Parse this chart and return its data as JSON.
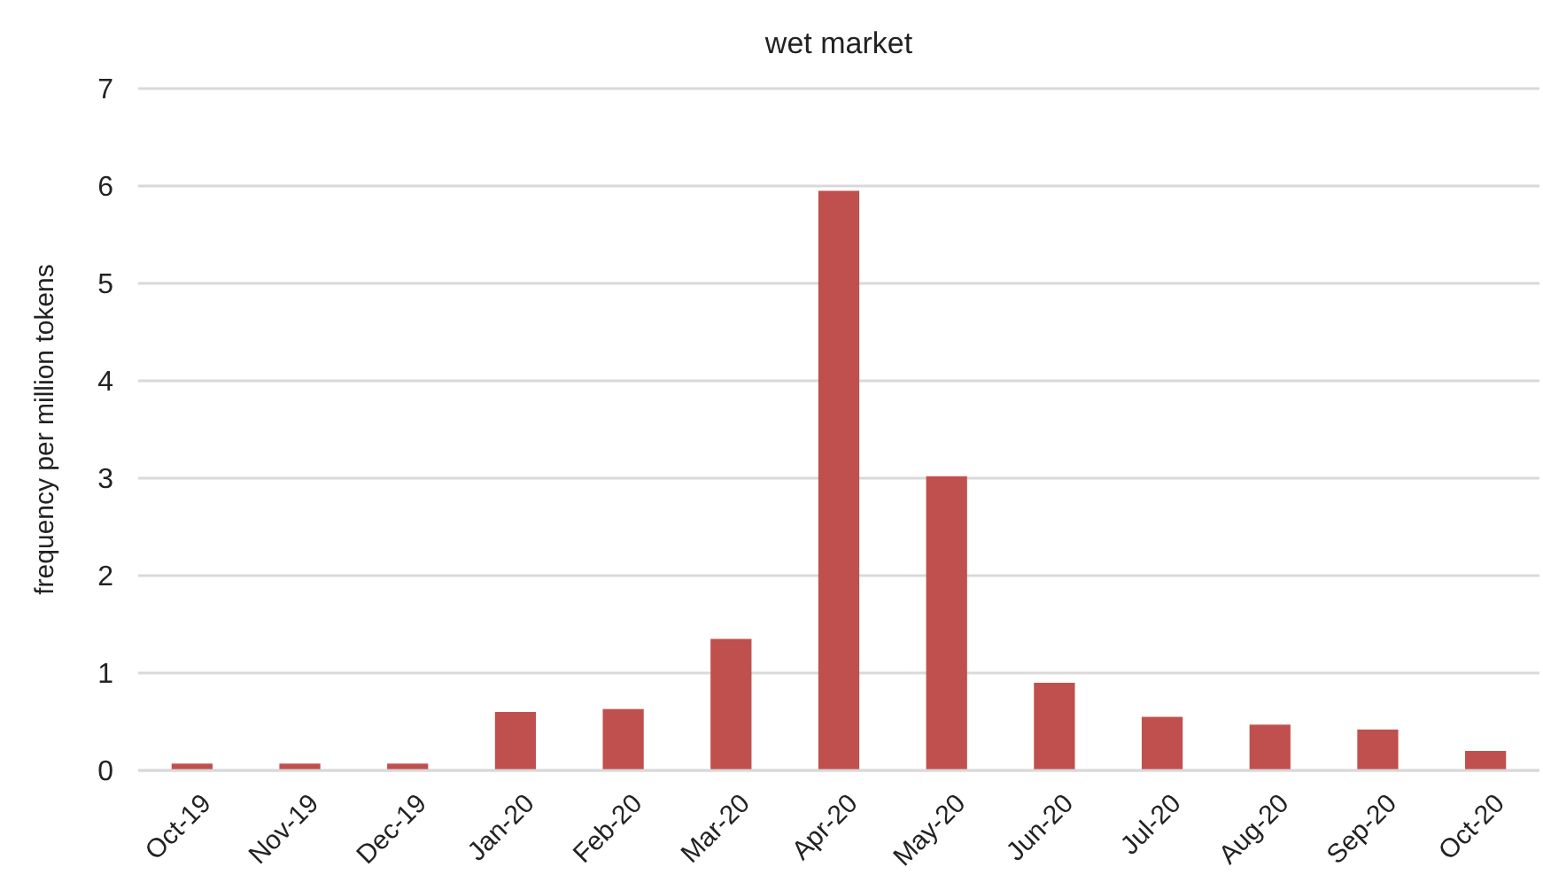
{
  "chart_data": {
    "type": "bar",
    "title": "wet market",
    "ylabel": "frequency per million tokens",
    "categories": [
      "Oct-19",
      "Nov-19",
      "Dec-19",
      "Jan-20",
      "Feb-20",
      "Mar-20",
      "Apr-20",
      "May-20",
      "Jun-20",
      "Jul-20",
      "Aug-20",
      "Sep-20",
      "Oct-20"
    ],
    "values": [
      0.07,
      0.07,
      0.07,
      0.6,
      0.63,
      1.35,
      5.95,
      3.02,
      0.9,
      0.55,
      0.47,
      0.42,
      0.2
    ],
    "color": "#c0504d",
    "ylim": [
      0,
      7
    ],
    "yticks": [
      0,
      1,
      2,
      3,
      4,
      5,
      6,
      7
    ],
    "grid": "y"
  }
}
